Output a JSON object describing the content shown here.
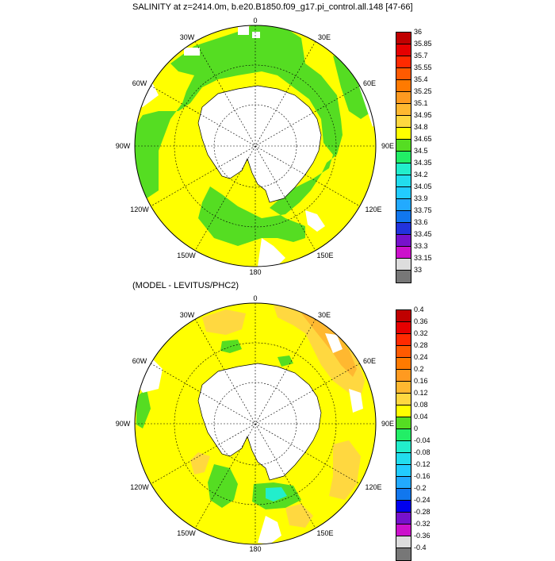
{
  "panel1": {
    "title": "SALINITY at z=2414.0m, b.e20.B1850.f09_g17.pi_control.all.148 [47-66]",
    "lon_labels": {
      "top": "0",
      "ne": "30E",
      "e1": "60E",
      "east": "90E",
      "se1": "120E",
      "se2": "150E",
      "bottom": "180",
      "sw2": "150W",
      "sw1": "120W",
      "west": "90W",
      "nw1": "60W",
      "nw2": "30W"
    },
    "colorbar_labels": [
      "36",
      "35.85",
      "35.7",
      "35.55",
      "35.4",
      "35.25",
      "35.1",
      "34.95",
      "34.8",
      "34.65",
      "34.5",
      "34.35",
      "34.2",
      "34.05",
      "33.9",
      "33.75",
      "33.6",
      "33.45",
      "33.3",
      "33.15",
      "33"
    ],
    "colorbar_colors": [
      "#c00000",
      "#e60000",
      "#ff2a00",
      "#ff5a00",
      "#ff7a00",
      "#ff9a20",
      "#ffb830",
      "#ffd840",
      "#ffff00",
      "#55dd22",
      "#22ee66",
      "#22eecc",
      "#22ddee",
      "#22ccff",
      "#22aaff",
      "#1177ee",
      "#2233dd",
      "#7711cc",
      "#cc11cc",
      "#dddddd",
      "#777777"
    ]
  },
  "panel2": {
    "title": "(MODEL - LEVITUS/PHC2)",
    "lon_labels": {
      "top": "0",
      "ne": "30E",
      "e1": "60E",
      "east": "90E",
      "se1": "120E",
      "se2": "150E",
      "bottom": "180",
      "sw2": "150W",
      "sw1": "120W",
      "west": "90W",
      "nw1": "60W",
      "nw2": "30W"
    },
    "colorbar_labels": [
      "0.4",
      "0.36",
      "0.32",
      "0.28",
      "0.24",
      "0.2",
      "0.16",
      "0.12",
      "0.08",
      "0.04",
      "0",
      "-0.04",
      "-0.08",
      "-0.12",
      "-0.16",
      "-0.2",
      "-0.24",
      "-0.28",
      "-0.32",
      "-0.36",
      "-0.4"
    ],
    "colorbar_colors": [
      "#c00000",
      "#e60000",
      "#ff2a00",
      "#ff5a00",
      "#ff7a00",
      "#ff9a20",
      "#ffb830",
      "#ffd840",
      "#ffff00",
      "#55dd22",
      "#22ee66",
      "#22eecc",
      "#22ddee",
      "#22ccff",
      "#22aaff",
      "#1177ee",
      "#0000ee",
      "#7711cc",
      "#cc11cc",
      "#dddddd",
      "#777777"
    ]
  }
}
